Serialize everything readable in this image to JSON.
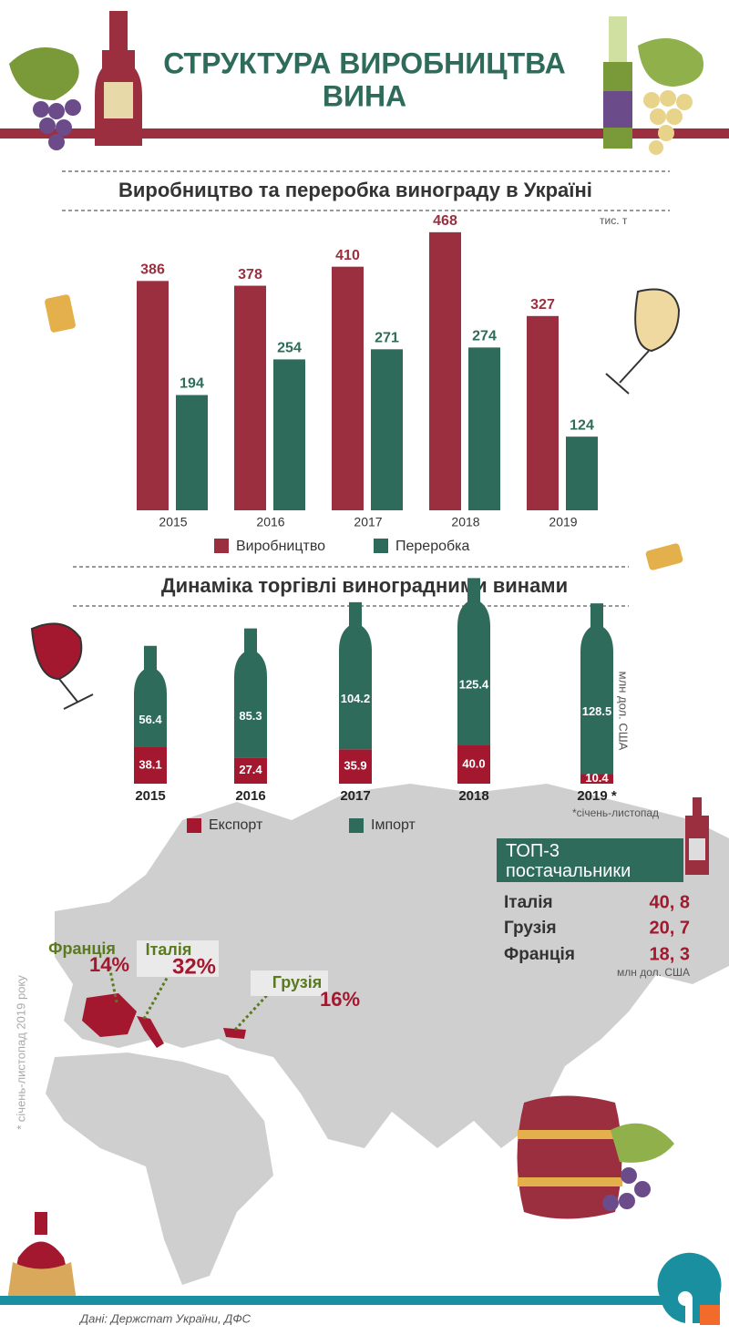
{
  "header": {
    "title": "СТРУКТУРА ВИРОБНИЦТВА ВИНА"
  },
  "chart_data": [
    {
      "type": "bar",
      "title": "Виробництво та переробка винограду в Україні",
      "unit": "тис. т",
      "categories": [
        "2015",
        "2016",
        "2017",
        "2018",
        "2019"
      ],
      "series": [
        {
          "name": "Виробництво",
          "color": "#9b2f3f",
          "values": [
            386,
            378,
            410,
            468,
            327
          ]
        },
        {
          "name": "Переробка",
          "color": "#2e6b5a",
          "values": [
            194,
            254,
            271,
            274,
            124
          ]
        }
      ]
    },
    {
      "type": "stacked-bottle",
      "title": "Динаміка торгівлі виноградними винами",
      "unit": "млн дол. США",
      "note": "*січень-листопад",
      "categories": [
        "2015",
        "2016",
        "2017",
        "2018",
        "2019 *"
      ],
      "series": [
        {
          "name": "Експорт",
          "color": "#a3182f",
          "values": [
            38.1,
            27.4,
            35.9,
            40.0,
            10.4
          ],
          "value_labels": [
            "38.1",
            "27.4",
            "35.9",
            "40.0",
            "10.4"
          ]
        },
        {
          "name": "Імпорт",
          "color": "#2e6b5a",
          "values": [
            56.4,
            85.3,
            104.2,
            125.4,
            128.5
          ]
        }
      ]
    }
  ],
  "map": {
    "note": "* січень-листопад 2019 року",
    "countries": [
      {
        "name": "Франція",
        "share": "14%"
      },
      {
        "name": "Італія",
        "share": "32%"
      },
      {
        "name": "Грузія",
        "share": "16%"
      }
    ]
  },
  "top3": {
    "title": "ТОП-3 постачальники",
    "unit": "млн дол. США",
    "rows": [
      [
        "Італія",
        "40, 8"
      ],
      [
        "Грузія",
        "20, 7"
      ],
      [
        "Франція",
        "18, 3"
      ]
    ]
  },
  "source": "Дані: Держстат України, ДФС"
}
